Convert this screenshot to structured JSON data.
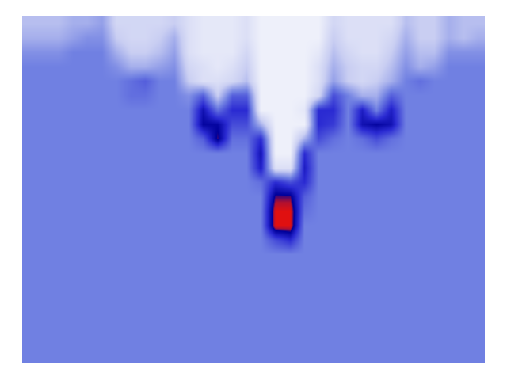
{
  "chart_data": {
    "type": "heatmap",
    "tick_labels": false,
    "zlim": [
      0,
      1
    ],
    "cells": [
      [
        0.25,
        0.25,
        0.25,
        0.3,
        0.3,
        0.35,
        0.15,
        0.15,
        0.15,
        0.15,
        0.2,
        0.1,
        0.05,
        0.05,
        0.05,
        0.1,
        0,
        0,
        0,
        0,
        0,
        0.15,
        0.1,
        0.1,
        0.1,
        0.1,
        0.25,
        0.2,
        0.2,
        0.3,
        0.25,
        0.25
      ],
      [
        0.3,
        0.3,
        0.3,
        0.35,
        0.4,
        0.4,
        0.2,
        0.15,
        0.15,
        0.2,
        0.3,
        0.1,
        0.05,
        0.05,
        0.05,
        0.1,
        0,
        0,
        0,
        0,
        0,
        0.2,
        0.1,
        0.1,
        0.1,
        0.15,
        0.3,
        0.2,
        0.2,
        0.3,
        0.25,
        0.3
      ],
      [
        0.4,
        0.4,
        0.4,
        0.45,
        0.45,
        0.45,
        0.3,
        0.2,
        0.2,
        0.25,
        0.35,
        0.1,
        0.05,
        0.05,
        0.05,
        0.15,
        0,
        0,
        0,
        0,
        0.05,
        0.25,
        0.15,
        0.1,
        0.1,
        0.2,
        0.35,
        0.25,
        0.25,
        0.4,
        0.4,
        0.4
      ],
      [
        0.45,
        0.45,
        0.45,
        0.45,
        0.45,
        0.45,
        0.4,
        0.3,
        0.3,
        0.35,
        0.4,
        0.15,
        0.1,
        0.05,
        0.1,
        0.2,
        0,
        0,
        0,
        0,
        0.1,
        0.3,
        0.2,
        0.15,
        0.15,
        0.25,
        0.4,
        0.3,
        0.35,
        0.45,
        0.45,
        0.45
      ],
      [
        0.45,
        0.45,
        0.45,
        0.45,
        0.45,
        0.45,
        0.45,
        0.5,
        0.55,
        0.45,
        0.45,
        0.2,
        0.1,
        0.1,
        0.15,
        0.25,
        0,
        0,
        0,
        0,
        0.1,
        0.35,
        0.2,
        0.15,
        0.2,
        0.3,
        0.45,
        0.5,
        0.45,
        0.45,
        0.45,
        0.45
      ],
      [
        0.45,
        0.45,
        0.45,
        0.45,
        0.45,
        0.45,
        0.45,
        0.5,
        0.5,
        0.45,
        0.45,
        0.4,
        0.55,
        0.2,
        0.55,
        0.55,
        0,
        0,
        0,
        0,
        0.15,
        0.6,
        0.45,
        0.3,
        0.3,
        0.55,
        0.45,
        0.45,
        0.45,
        0.45,
        0.45,
        0.45
      ],
      [
        0.45,
        0.45,
        0.45,
        0.45,
        0.45,
        0.45,
        0.45,
        0.45,
        0.45,
        0.45,
        0.45,
        0.45,
        0.8,
        0.5,
        0.7,
        0.7,
        0,
        0,
        0,
        0.05,
        0.7,
        0.7,
        0.45,
        0.75,
        0.45,
        0.75,
        0.45,
        0.45,
        0.45,
        0.45,
        0.45,
        0.45
      ],
      [
        0.45,
        0.45,
        0.45,
        0.45,
        0.45,
        0.45,
        0.45,
        0.45,
        0.45,
        0.45,
        0.45,
        0.45,
        0.85,
        0.85,
        0.6,
        0.6,
        0.3,
        0,
        0,
        0,
        0.7,
        0.65,
        0.45,
        0.8,
        0.85,
        0.8,
        0.45,
        0.45,
        0.45,
        0.45,
        0.45,
        0.45
      ],
      [
        0.45,
        0.45,
        0.45,
        0.45,
        0.45,
        0.45,
        0.45,
        0.45,
        0.45,
        0.45,
        0.45,
        0.45,
        0.55,
        0.9,
        0.5,
        0.5,
        0.7,
        0,
        0,
        0.3,
        0.6,
        0.5,
        0.45,
        0.5,
        0.6,
        0.5,
        0.45,
        0.45,
        0.45,
        0.45,
        0.45,
        0.45
      ],
      [
        0.45,
        0.45,
        0.45,
        0.45,
        0.45,
        0.45,
        0.45,
        0.45,
        0.45,
        0.45,
        0.45,
        0.45,
        0.45,
        0.45,
        0.45,
        0.45,
        0.8,
        0,
        0,
        0.7,
        0.45,
        0.45,
        0.45,
        0.45,
        0.45,
        0.45,
        0.45,
        0.45,
        0.45,
        0.45,
        0.45,
        0.45
      ],
      [
        0.45,
        0.45,
        0.45,
        0.45,
        0.45,
        0.45,
        0.45,
        0.45,
        0.45,
        0.45,
        0.45,
        0.45,
        0.45,
        0.45,
        0.45,
        0.45,
        0.75,
        0.1,
        0.1,
        0.75,
        0.45,
        0.45,
        0.45,
        0.45,
        0.45,
        0.45,
        0.45,
        0.45,
        0.45,
        0.45,
        0.45,
        0.45
      ],
      [
        0.45,
        0.45,
        0.45,
        0.45,
        0.45,
        0.45,
        0.45,
        0.45,
        0.45,
        0.45,
        0.45,
        0.45,
        0.45,
        0.45,
        0.45,
        0.45,
        0.5,
        0.7,
        0.6,
        0.7,
        0.45,
        0.45,
        0.45,
        0.45,
        0.45,
        0.45,
        0.45,
        0.45,
        0.45,
        0.45,
        0.45,
        0.45
      ],
      [
        0.45,
        0.45,
        0.45,
        0.45,
        0.45,
        0.45,
        0.45,
        0.45,
        0.45,
        0.45,
        0.45,
        0.45,
        0.45,
        0.45,
        0.45,
        0.45,
        0.45,
        0.9,
        0.9,
        0.55,
        0.45,
        0.45,
        0.45,
        0.45,
        0.45,
        0.45,
        0.45,
        0.45,
        0.45,
        0.45,
        0.45,
        0.45
      ],
      [
        0.45,
        0.45,
        0.45,
        0.45,
        0.45,
        0.45,
        0.45,
        0.45,
        0.45,
        0.45,
        0.45,
        0.45,
        0.45,
        0.45,
        0.45,
        0.45,
        0.45,
        1,
        1,
        0.5,
        0.45,
        0.45,
        0.45,
        0.45,
        0.45,
        0.45,
        0.45,
        0.45,
        0.45,
        0.45,
        0.45,
        0.45
      ],
      [
        0.45,
        0.45,
        0.45,
        0.45,
        0.45,
        0.45,
        0.45,
        0.45,
        0.45,
        0.45,
        0.45,
        0.45,
        0.45,
        0.45,
        0.45,
        0.45,
        0.45,
        1,
        1,
        0.45,
        0.45,
        0.45,
        0.45,
        0.45,
        0.45,
        0.45,
        0.45,
        0.45,
        0.45,
        0.45,
        0.45,
        0.45
      ],
      [
        0.45,
        0.45,
        0.45,
        0.45,
        0.45,
        0.45,
        0.45,
        0.45,
        0.45,
        0.45,
        0.45,
        0.45,
        0.45,
        0.45,
        0.45,
        0.45,
        0.45,
        0.6,
        0.7,
        0.45,
        0.45,
        0.45,
        0.45,
        0.45,
        0.45,
        0.45,
        0.45,
        0.45,
        0.45,
        0.45,
        0.45,
        0.45
      ],
      [
        0.45,
        0.45,
        0.45,
        0.45,
        0.45,
        0.45,
        0.45,
        0.45,
        0.45,
        0.45,
        0.45,
        0.45,
        0.45,
        0.45,
        0.45,
        0.45,
        0.45,
        0.45,
        0.45,
        0.45,
        0.45,
        0.45,
        0.45,
        0.45,
        0.45,
        0.45,
        0.45,
        0.45,
        0.45,
        0.45,
        0.45,
        0.45
      ],
      [
        0.45,
        0.45,
        0.45,
        0.45,
        0.45,
        0.45,
        0.45,
        0.45,
        0.45,
        0.45,
        0.45,
        0.45,
        0.45,
        0.45,
        0.45,
        0.45,
        0.45,
        0.45,
        0.45,
        0.45,
        0.45,
        0.45,
        0.45,
        0.45,
        0.45,
        0.45,
        0.45,
        0.45,
        0.45,
        0.45,
        0.45,
        0.45
      ],
      [
        0.45,
        0.45,
        0.45,
        0.45,
        0.45,
        0.45,
        0.45,
        0.45,
        0.45,
        0.45,
        0.45,
        0.45,
        0.45,
        0.45,
        0.45,
        0.45,
        0.45,
        0.45,
        0.45,
        0.45,
        0.45,
        0.45,
        0.45,
        0.45,
        0.45,
        0.45,
        0.45,
        0.45,
        0.45,
        0.45,
        0.45,
        0.45
      ],
      [
        0.45,
        0.45,
        0.45,
        0.45,
        0.45,
        0.45,
        0.45,
        0.45,
        0.45,
        0.45,
        0.45,
        0.45,
        0.45,
        0.45,
        0.45,
        0.45,
        0.45,
        0.45,
        0.45,
        0.45,
        0.45,
        0.45,
        0.45,
        0.45,
        0.45,
        0.45,
        0.45,
        0.45,
        0.45,
        0.45,
        0.45,
        0.45
      ],
      [
        0.45,
        0.45,
        0.45,
        0.45,
        0.45,
        0.45,
        0.45,
        0.45,
        0.45,
        0.45,
        0.45,
        0.45,
        0.45,
        0.45,
        0.45,
        0.45,
        0.45,
        0.45,
        0.45,
        0.45,
        0.45,
        0.45,
        0.45,
        0.45,
        0.45,
        0.45,
        0.45,
        0.45,
        0.45,
        0.45,
        0.45,
        0.45
      ],
      [
        0.45,
        0.45,
        0.45,
        0.45,
        0.45,
        0.45,
        0.45,
        0.45,
        0.45,
        0.45,
        0.45,
        0.45,
        0.45,
        0.45,
        0.45,
        0.45,
        0.45,
        0.45,
        0.45,
        0.45,
        0.45,
        0.45,
        0.45,
        0.45,
        0.45,
        0.45,
        0.45,
        0.45,
        0.45,
        0.45,
        0.45,
        0.45
      ],
      [
        0.45,
        0.45,
        0.45,
        0.45,
        0.45,
        0.45,
        0.45,
        0.45,
        0.45,
        0.45,
        0.45,
        0.45,
        0.45,
        0.45,
        0.45,
        0.45,
        0.45,
        0.45,
        0.45,
        0.45,
        0.45,
        0.45,
        0.45,
        0.45,
        0.45,
        0.45,
        0.45,
        0.45,
        0.45,
        0.45,
        0.45,
        0.45
      ],
      [
        0.45,
        0.45,
        0.45,
        0.45,
        0.45,
        0.45,
        0.45,
        0.45,
        0.45,
        0.45,
        0.45,
        0.45,
        0.45,
        0.45,
        0.45,
        0.45,
        0.45,
        0.45,
        0.45,
        0.45,
        0.45,
        0.45,
        0.45,
        0.45,
        0.45,
        0.45,
        0.45,
        0.45,
        0.45,
        0.45,
        0.45,
        0.45
      ]
    ]
  }
}
